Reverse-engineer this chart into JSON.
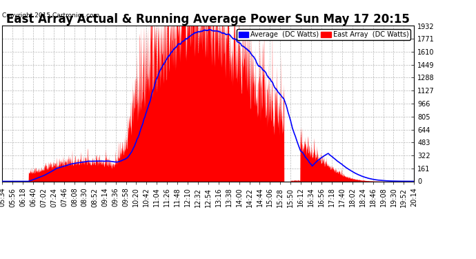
{
  "title": "East Array Actual & Running Average Power Sun May 17 20:15",
  "copyright": "Copyright 2015 Cartronics.com",
  "legend_avg": "Average  (DC Watts)",
  "legend_east": "East Array  (DC Watts)",
  "ymax": 1931.8,
  "yticks": [
    0.0,
    161.0,
    322.0,
    482.9,
    643.9,
    804.9,
    965.9,
    1126.9,
    1287.9,
    1448.8,
    1609.8,
    1770.8,
    1931.8
  ],
  "bg_color": "#ffffff",
  "grid_color": "#999999",
  "bar_color": "#ff0000",
  "avg_color": "#0000ff",
  "title_fontsize": 12,
  "axis_fontsize": 7,
  "tick_times": [
    "05:34",
    "05:56",
    "06:18",
    "06:40",
    "07:02",
    "07:24",
    "07:46",
    "08:08",
    "08:30",
    "08:52",
    "09:14",
    "09:36",
    "09:58",
    "10:20",
    "10:42",
    "11:04",
    "11:26",
    "11:48",
    "12:10",
    "12:32",
    "12:54",
    "13:16",
    "13:38",
    "14:00",
    "14:22",
    "14:44",
    "15:06",
    "15:28",
    "15:50",
    "16:12",
    "16:34",
    "16:56",
    "17:18",
    "17:40",
    "18:02",
    "18:24",
    "18:46",
    "19:08",
    "19:30",
    "19:52",
    "20:14"
  ],
  "start_hhmm": "05:34",
  "end_hhmm": "20:14"
}
